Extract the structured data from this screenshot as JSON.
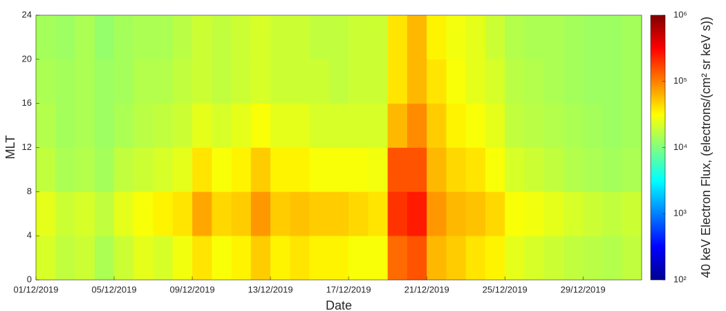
{
  "chart_data": {
    "type": "heatmap",
    "x_label": "Date",
    "y_label": "MLT",
    "colorbar_label": "40 keV Electron Flux, (electrons/(cm² sr keV s))",
    "colorscale": "jet",
    "color_log_scale": true,
    "categories": [
      "01/12/2019",
      null,
      null,
      null,
      "05/12/2019",
      null,
      null,
      null,
      "09/12/2019",
      null,
      null,
      null,
      "13/12/2019",
      null,
      null,
      null,
      "17/12/2019",
      null,
      null,
      null,
      "21/12/2019",
      null,
      null,
      null,
      "25/12/2019",
      null,
      null,
      null,
      "29/12/2019",
      null,
      null
    ],
    "ybins": [
      0,
      4,
      8,
      12,
      16,
      20,
      24
    ],
    "ylim": [
      0,
      24
    ],
    "yticks": [
      0,
      4,
      8,
      12,
      16,
      20,
      24
    ],
    "clim": [
      100,
      1000000
    ],
    "cticks": [
      {
        "value": 100,
        "label": "10²"
      },
      {
        "value": 1000,
        "label": "10³"
      },
      {
        "value": 10000,
        "label": "10⁴"
      },
      {
        "value": 100000,
        "label": "10⁵"
      },
      {
        "value": 1000000,
        "label": "10⁶"
      }
    ],
    "values": [
      [
        22000,
        25000,
        18000,
        16000,
        15000,
        14000
      ],
      [
        18000,
        20000,
        15000,
        14000,
        14000,
        13000
      ],
      [
        20000,
        22000,
        16000,
        15000,
        15000,
        15000
      ],
      [
        15000,
        18000,
        14000,
        13000,
        13000,
        12000
      ],
      [
        20000,
        25000,
        18000,
        15000,
        14000,
        14000
      ],
      [
        25000,
        30000,
        20000,
        17000,
        16000,
        15000
      ],
      [
        22000,
        35000,
        22000,
        18000,
        16000,
        15000
      ],
      [
        28000,
        40000,
        25000,
        20000,
        18000,
        17000
      ],
      [
        40000,
        70000,
        40000,
        25000,
        20000,
        20000
      ],
      [
        30000,
        45000,
        30000,
        22000,
        18000,
        18000
      ],
      [
        35000,
        50000,
        35000,
        25000,
        20000,
        20000
      ],
      [
        50000,
        80000,
        50000,
        30000,
        22000,
        22000
      ],
      [
        35000,
        50000,
        35000,
        25000,
        20000,
        20000
      ],
      [
        40000,
        55000,
        35000,
        25000,
        20000,
        20000
      ],
      [
        35000,
        50000,
        30000,
        22000,
        20000,
        18000
      ],
      [
        35000,
        50000,
        30000,
        22000,
        18000,
        18000
      ],
      [
        30000,
        45000,
        30000,
        22000,
        20000,
        20000
      ],
      [
        30000,
        40000,
        28000,
        22000,
        20000,
        20000
      ],
      [
        120000,
        200000,
        150000,
        60000,
        40000,
        40000
      ],
      [
        150000,
        250000,
        150000,
        90000,
        60000,
        60000
      ],
      [
        60000,
        80000,
        60000,
        50000,
        40000,
        35000
      ],
      [
        50000,
        60000,
        45000,
        35000,
        30000,
        28000
      ],
      [
        40000,
        55000,
        40000,
        30000,
        25000,
        25000
      ],
      [
        35000,
        45000,
        30000,
        25000,
        22000,
        20000
      ],
      [
        25000,
        30000,
        22000,
        18000,
        17000,
        16000
      ],
      [
        22000,
        28000,
        20000,
        17000,
        16000,
        15000
      ],
      [
        20000,
        25000,
        18000,
        16000,
        15000,
        15000
      ],
      [
        18000,
        22000,
        16000,
        15000,
        14000,
        14000
      ],
      [
        17000,
        20000,
        15000,
        14000,
        13000,
        13000
      ],
      [
        16000,
        18000,
        14000,
        13000,
        13000,
        13000
      ],
      [
        18000,
        20000,
        15000,
        14000,
        14000,
        14000
      ]
    ]
  }
}
